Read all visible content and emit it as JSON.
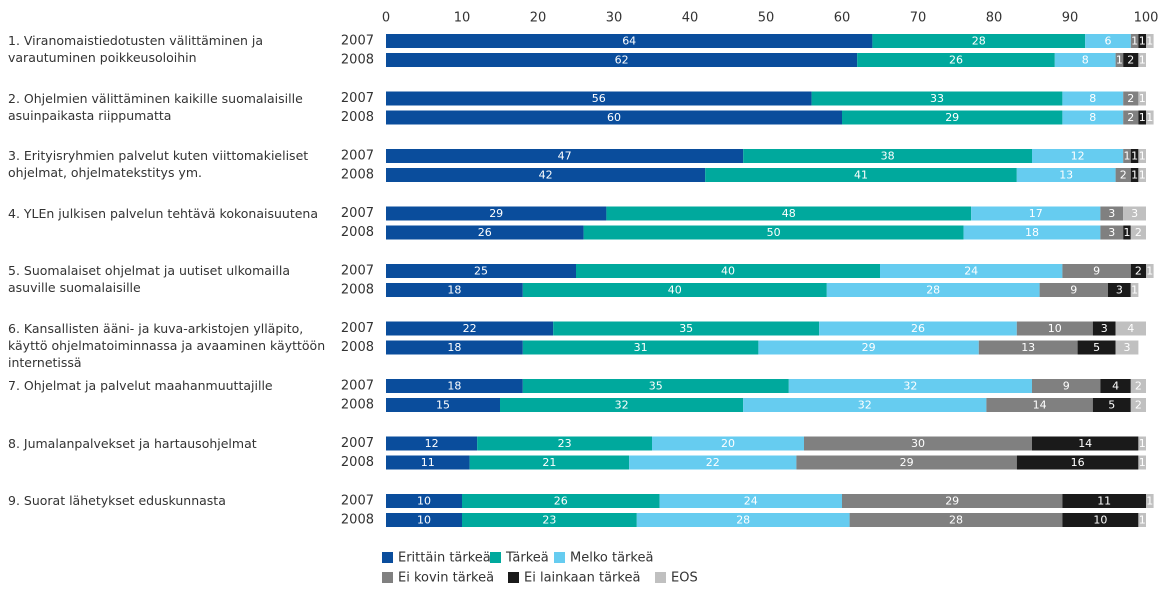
{
  "chart_data": {
    "type": "stacked-bar-horizontal",
    "groups": [
      "1. Viranomaistiedotusten välittäminen ja varautuminen poikkeusoloihin",
      "2. Ohjelmien välittäminen kaikille  suomalaisille asuinpaikasta riippumatta",
      "3. Erityisryhmien palvelut kuten viittomakieliset ohjelmat, ohjelmatekstitys ym.",
      "4. YLEn julkisen palvelun tehtävä kokonaisuutena",
      "5. Suomalaiset ohjelmat ja uutiset ulkomailla asuville suomalaisille",
      "6. Kansallisten ääni- ja kuva-arkistojen ylläpito, käyttö ohjelmatoiminnassa ja avaaminen käyttöön internetissä",
      "7. Ohjelmat ja palvelut maahanmuuttajille",
      "8. Jumalanpalvekset ja hartausohjelmat",
      "9. Suorat lähetykset eduskunnasta"
    ],
    "categories": [
      "2007",
      "2008",
      "2007",
      "2008",
      "2007",
      "2008",
      "2007",
      "2008",
      "2007",
      "2008",
      "2007",
      "2008",
      "2007",
      "2008",
      "2007",
      "2008",
      "2007",
      "2008"
    ],
    "series": [
      {
        "name": "Erittäin tärkeä",
        "color": "#0a4d9c",
        "values": [
          64,
          62,
          56,
          60,
          47,
          42,
          29,
          26,
          25,
          18,
          22,
          18,
          18,
          15,
          12,
          11,
          10,
          10
        ]
      },
      {
        "name": "Tärkeä",
        "color": "#00a99d",
        "values": [
          28,
          26,
          33,
          29,
          38,
          41,
          48,
          50,
          40,
          40,
          35,
          31,
          35,
          32,
          23,
          21,
          26,
          23
        ]
      },
      {
        "name": "Melko tärkeä",
        "color": "#66ccf0",
        "values": [
          6,
          8,
          8,
          8,
          12,
          13,
          17,
          18,
          24,
          28,
          26,
          29,
          32,
          32,
          20,
          22,
          24,
          28
        ]
      },
      {
        "name": "Ei kovin tärkeä",
        "color": "#808080",
        "values": [
          1,
          1,
          2,
          2,
          1,
          2,
          3,
          3,
          9,
          9,
          10,
          13,
          9,
          14,
          30,
          29,
          29,
          28
        ]
      },
      {
        "name": "Ei lainkaan tärkeä",
        "color": "#1a1a1a",
        "values": [
          1,
          2,
          null,
          1,
          1,
          1,
          null,
          1,
          2,
          3,
          3,
          5,
          4,
          5,
          14,
          16,
          11,
          10
        ]
      },
      {
        "name": "EOS",
        "color": "#c0c0c0",
        "values": [
          1,
          1,
          1,
          1,
          1,
          1,
          3,
          2,
          1,
          1,
          4,
          3,
          2,
          2,
          1,
          1,
          1,
          1
        ]
      }
    ],
    "xlim": [
      0,
      100
    ],
    "xticks": [
      0,
      10,
      20,
      30,
      40,
      50,
      60,
      70,
      80,
      90,
      100
    ]
  }
}
